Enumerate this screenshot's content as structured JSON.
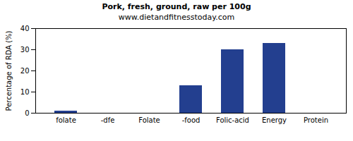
{
  "chart_data": {
    "type": "bar",
    "title": "Pork, fresh, ground, raw per 100g",
    "subtitle": "www.dietandfitnesstoday.com",
    "y_label": "Percentage of RDA (%)",
    "categories": [
      "folate",
      "-dfe",
      "Folate",
      "-food",
      "Folic-acid",
      "Energy",
      "Protein"
    ],
    "values": [
      1,
      0,
      0,
      13,
      30,
      33,
      0
    ],
    "color": "#233f8f",
    "ylim": [
      0,
      40
    ],
    "yticks": [
      0,
      10,
      20,
      30,
      40
    ],
    "grid": false
  }
}
